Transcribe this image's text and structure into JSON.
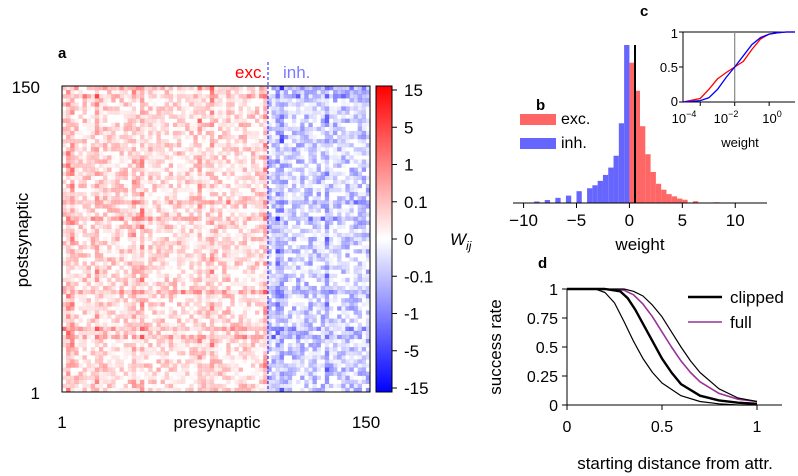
{
  "panels": {
    "a": {
      "letter": "a",
      "exc_label": "exc.",
      "inh_label": "inh.",
      "xlabel": "presynaptic",
      "ylabel": "postsynaptic",
      "x_ticks": [
        "1",
        "150"
      ],
      "y_ticks": [
        "150",
        "1"
      ],
      "colorbar_ticks": [
        "15",
        "5",
        "1",
        "0.1",
        "0",
        "-0.1",
        "-1",
        "-5",
        "-15"
      ],
      "colorbar_label": "W",
      "colorbar_label_sub": "ij",
      "colors": {
        "exc": "#ff0000",
        "inh": "#0000ff",
        "divider": "#6666ff"
      }
    },
    "b": {
      "letter": "b",
      "legend": [
        {
          "label": "exc.",
          "color": "#ff6666"
        },
        {
          "label": "inh.",
          "color": "#6666ff"
        }
      ],
      "xlabel": "weight",
      "x_ticks": [
        "−10",
        "−5",
        "0",
        "5",
        "10"
      ]
    },
    "c": {
      "letter": "c",
      "xlabel": "weight",
      "x_ticks": [
        "10",
        "10",
        "10"
      ],
      "x_ticks_exp": [
        "−4",
        "−2",
        "0"
      ],
      "y_ticks": [
        "1",
        "0.5",
        "0"
      ]
    },
    "d": {
      "letter": "d",
      "xlabel": "starting distance from attr.",
      "ylabel": "success rate",
      "x_ticks": [
        "0",
        "0.5",
        "1"
      ],
      "y_ticks": [
        "1",
        "0.75",
        "0.5",
        "0.25",
        "0"
      ],
      "legend": [
        {
          "label": "clipped",
          "color": "#000000"
        },
        {
          "label": "full",
          "color": "#993399"
        }
      ]
    }
  },
  "chart_data": [
    {
      "panel": "a",
      "type": "heatmap",
      "xlabel": "presynaptic",
      "ylabel": "postsynaptic",
      "x_range": [
        1,
        150
      ],
      "y_range": [
        1,
        150
      ],
      "excitatory_columns": [
        1,
        100
      ],
      "inhibitory_columns": [
        101,
        150
      ],
      "colorbar_range": [
        -15,
        15
      ],
      "colorbar_scale": "symlog"
    },
    {
      "panel": "b",
      "type": "bar",
      "xlabel": "weight",
      "xlim": [
        -11,
        13
      ],
      "series": [
        {
          "name": "exc.",
          "bins": [
            0,
            0.5,
            1,
            1.5,
            2,
            2.5,
            3,
            3.5,
            4,
            4.5,
            5,
            6,
            8
          ],
          "values": [
            9.5,
            7.6,
            5.2,
            3.3,
            2.1,
            1.3,
            0.9,
            0.6,
            0.45,
            0.3,
            0.22,
            0.12,
            0.05
          ]
        },
        {
          "name": "inh.",
          "bins": [
            -0.5,
            -1,
            -1.5,
            -2,
            -2.5,
            -3,
            -3.5,
            -4,
            -5,
            -6,
            -7,
            -8,
            -9
          ],
          "values": [
            10.7,
            5.4,
            3.2,
            2.4,
            1.9,
            1.5,
            1.2,
            1.0,
            0.8,
            0.5,
            0.35,
            0.2,
            0.1
          ]
        }
      ]
    },
    {
      "panel": "c",
      "type": "line",
      "xlabel": "weight",
      "x_scale": "log",
      "xlim": [
        -5,
        1.5
      ],
      "ylim": [
        0,
        1
      ],
      "vline_x_log": -2,
      "series": [
        {
          "color": "#ff0000",
          "x_log": [
            -5,
            -4,
            -3.5,
            -3,
            -2.5,
            -2,
            -1.5,
            -1,
            -0.5,
            0,
            0.5,
            1,
            1.5
          ],
          "y": [
            0,
            0.05,
            0.18,
            0.33,
            0.42,
            0.5,
            0.58,
            0.75,
            0.9,
            0.97,
            0.99,
            1,
            1
          ]
        },
        {
          "color": "#0000ff",
          "x_log": [
            -5,
            -4,
            -3.5,
            -3,
            -2.5,
            -2,
            -1.5,
            -1,
            -0.5,
            0,
            0.5,
            1,
            1.5
          ],
          "y": [
            0,
            0.02,
            0.06,
            0.18,
            0.35,
            0.5,
            0.66,
            0.82,
            0.92,
            0.97,
            0.99,
            1,
            1
          ]
        }
      ]
    },
    {
      "panel": "d",
      "type": "line",
      "xlabel": "starting distance from attr.",
      "ylabel": "success rate",
      "xlim": [
        0,
        1.1
      ],
      "ylim": [
        0,
        1
      ],
      "series": [
        {
          "name": "full",
          "color": "#993399",
          "width": 1.6,
          "x": [
            0,
            0.2,
            0.3,
            0.35,
            0.4,
            0.45,
            0.5,
            0.55,
            0.6,
            0.65,
            0.7,
            0.8,
            0.9,
            1.0
          ],
          "y": [
            1,
            1,
            0.99,
            0.95,
            0.87,
            0.76,
            0.63,
            0.5,
            0.38,
            0.28,
            0.2,
            0.1,
            0.05,
            0.03
          ]
        },
        {
          "name": "clipped",
          "color": "#000000",
          "width": 2.4,
          "x": [
            0,
            0.2,
            0.28,
            0.32,
            0.36,
            0.4,
            0.45,
            0.5,
            0.55,
            0.6,
            0.7,
            0.8,
            0.9,
            1.0
          ],
          "y": [
            1,
            1,
            0.98,
            0.92,
            0.82,
            0.7,
            0.55,
            0.4,
            0.28,
            0.18,
            0.08,
            0.04,
            0.02,
            0.01
          ]
        },
        {
          "name": "clipped (lower)",
          "color": "#000000",
          "width": 1.2,
          "x": [
            0,
            0.15,
            0.2,
            0.25,
            0.3,
            0.35,
            0.4,
            0.45,
            0.5,
            0.6,
            0.7,
            0.8,
            0.9,
            1.0
          ],
          "y": [
            1,
            1,
            0.97,
            0.88,
            0.72,
            0.55,
            0.4,
            0.28,
            0.19,
            0.08,
            0.03,
            0.01,
            0,
            0
          ]
        },
        {
          "name": "clipped (upper)",
          "color": "#000000",
          "width": 1.2,
          "x": [
            0,
            0.2,
            0.3,
            0.35,
            0.4,
            0.45,
            0.5,
            0.55,
            0.6,
            0.65,
            0.7,
            0.8,
            0.9,
            1.0
          ],
          "y": [
            1,
            1,
            1,
            0.98,
            0.94,
            0.86,
            0.76,
            0.63,
            0.5,
            0.38,
            0.28,
            0.14,
            0.06,
            0.03
          ]
        }
      ]
    }
  ]
}
